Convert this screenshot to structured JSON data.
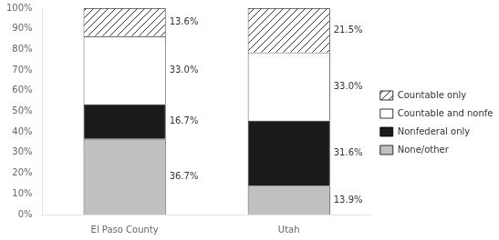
{
  "chart_data": {
    "type": "bar",
    "stacked": true,
    "categories": [
      "El Paso County",
      "Utah"
    ],
    "series": [
      {
        "name": "None/other",
        "color": "#c0c0c0",
        "values": [
          36.7,
          13.9
        ],
        "value_labels": [
          "36.7%",
          "13.9%"
        ]
      },
      {
        "name": "Nonfederal only",
        "color": "#1a1a1a",
        "values": [
          16.7,
          31.6
        ],
        "value_labels": [
          "16.7%",
          "31.6%"
        ]
      },
      {
        "name": "Countable and nonfederal",
        "color": "#ffffff",
        "values": [
          33.0,
          33.0
        ],
        "value_labels": [
          "33.0%",
          "33.0%"
        ]
      },
      {
        "name": "Countable only",
        "color": "#ffffff",
        "values": [
          13.6,
          21.5
        ],
        "value_labels": [
          "13.6%",
          "21.5%"
        ]
      }
    ],
    "ylim": [
      0,
      100
    ],
    "yticks": [
      {
        "value": 0,
        "label": "0%"
      },
      {
        "value": 10,
        "label": "10%"
      },
      {
        "value": 20,
        "label": "20%"
      },
      {
        "value": 30,
        "label": "30%"
      },
      {
        "value": 40,
        "label": "40%"
      },
      {
        "value": 50,
        "label": "50%"
      },
      {
        "value": 60,
        "label": "60%"
      },
      {
        "value": 70,
        "label": "70%"
      },
      {
        "value": 80,
        "label": "80%"
      },
      {
        "value": 90,
        "label": "90%"
      },
      {
        "value": 100,
        "label": "100%"
      }
    ],
    "grid": false,
    "legend": "right",
    "data_labels": true
  }
}
